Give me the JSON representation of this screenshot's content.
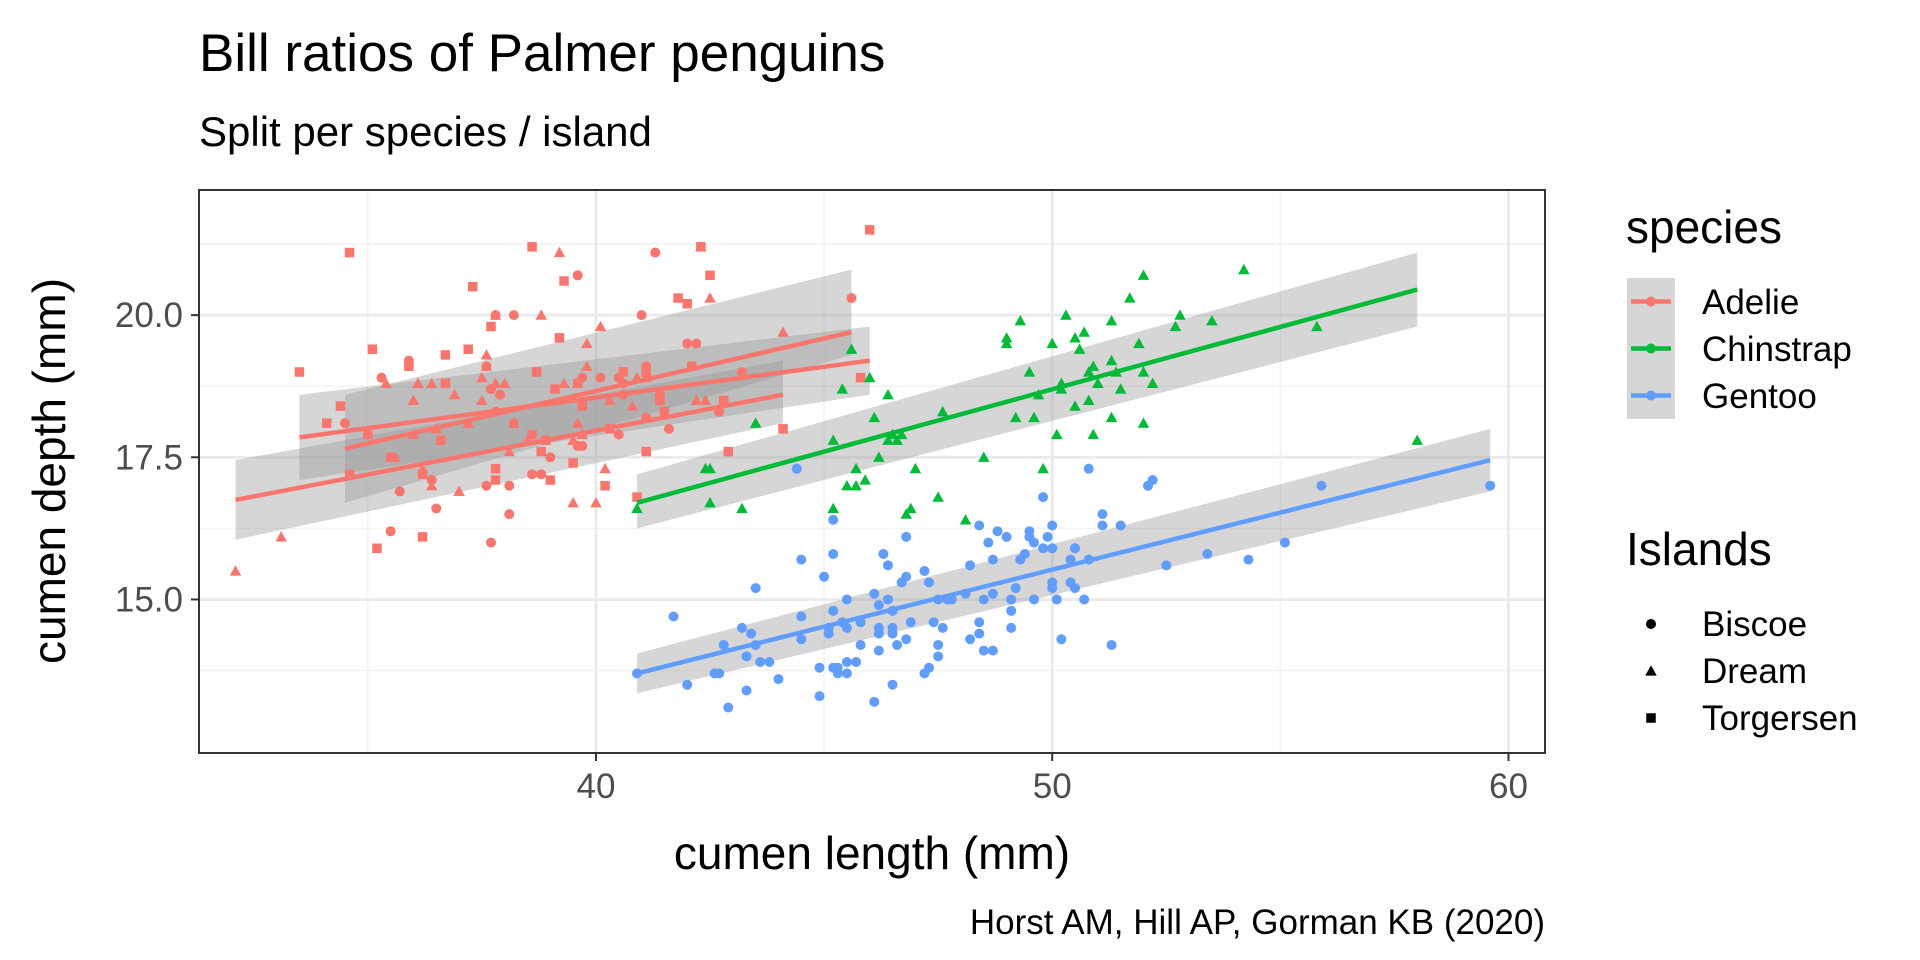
{
  "chart_data": {
    "type": "scatter",
    "title": "Bill ratios of Palmer penguins",
    "subtitle": "Split per species / island",
    "xlabel": "cumen length (mm)",
    "ylabel": "cumen depth (mm)",
    "caption": "Horst AM, Hill AP, Gorman KB (2020)",
    "xlim": [
      31.3,
      60.8
    ],
    "ylim": [
      12.3,
      22.2
    ],
    "x_ticks": [
      {
        "value": 40,
        "label": "40"
      },
      {
        "value": 50,
        "label": "50"
      },
      {
        "value": 60,
        "label": "60"
      }
    ],
    "y_ticks": [
      {
        "value": 15,
        "label": "15.0"
      },
      {
        "value": 17.5,
        "label": "17.5"
      },
      {
        "value": 20,
        "label": "20.0"
      }
    ],
    "grid": true,
    "legend_color": {
      "title": "species",
      "position": "right",
      "entries": [
        "Adelie",
        "Chinstrap",
        "Gentoo"
      ]
    },
    "legend_shape": {
      "title": "Islands",
      "position": "right",
      "entries": [
        {
          "label": "Biscoe",
          "shape": "circle"
        },
        {
          "label": "Dream",
          "shape": "triangle"
        },
        {
          "label": "Torgersen",
          "shape": "square"
        }
      ]
    },
    "colors": {
      "Adelie": "#F8766D",
      "Chinstrap": "#00BA38",
      "Gentoo": "#619CFF"
    },
    "series": [
      {
        "name": "Adelie",
        "points": [
          {
            "island": "Torgersen",
            "x": [
              39.1,
              39.5,
              40.3,
              36.7,
              39.3,
              38.9,
              39.2,
              34.1,
              42.0,
              37.8,
              37.8,
              41.1,
              38.6,
              34.6,
              36.6,
              38.7,
              42.5,
              34.4,
              46.0,
              35.9,
              41.8,
              33.5,
              39.7,
              39.6,
              45.8,
              35.5,
              42.8,
              40.9,
              37.2,
              36.2,
              42.1,
              34.6,
              42.9,
              36.7,
              35.1,
              37.3,
              41.1,
              36.2,
              37.7,
              40.2,
              41.4,
              35.2,
              40.6,
              38.8,
              41.5,
              39.0,
              44.1,
              38.6,
              42.3
            ],
            "y": [
              18.7,
              17.4,
              18.0,
              19.3,
              20.6,
              17.8,
              19.6,
              18.1,
              20.2,
              17.1,
              17.3,
              17.6,
              21.2,
              21.1,
              17.8,
              19.0,
              20.7,
              18.4,
              21.5,
              19.1,
              20.3,
              19.0,
              18.4,
              18.8,
              18.9,
              17.5,
              18.5,
              16.8,
              19.4,
              16.1,
              19.1,
              17.2,
              17.6,
              18.8,
              19.4,
              20.5,
              19.0,
              17.2,
              19.8,
              17.0,
              18.5,
              15.9,
              19.0,
              17.6,
              18.3,
              17.1,
              18.0,
              17.9,
              21.2
            ]
          },
          {
            "island": "Biscoe",
            "x": [
              37.8,
              37.7,
              35.9,
              38.2,
              38.8,
              35.3,
              40.6,
              40.5,
              37.9,
              40.5,
              39.6,
              40.1,
              35.0,
              42.0,
              34.5,
              41.4,
              39.0,
              40.6,
              36.5,
              37.6,
              35.7,
              41.3,
              37.6,
              41.1,
              36.4,
              41.6,
              35.5,
              41.1,
              35.0,
              41.0,
              37.7,
              37.8,
              37.9,
              39.7,
              38.6,
              38.2,
              38.1,
              43.2,
              38.1,
              45.6,
              39.7,
              42.2,
              39.6,
              42.7
            ],
            "y": [
              18.3,
              18.7,
              19.2,
              18.1,
              17.2,
              18.9,
              18.6,
              17.9,
              18.6,
              18.9,
              17.7,
              18.9,
              17.9,
              19.5,
              18.1,
              18.6,
              17.5,
              18.8,
              16.6,
              19.1,
              16.9,
              21.1,
              17.0,
              18.2,
              17.1,
              18.0,
              16.2,
              19.1,
              17.9,
              20.0,
              16.0,
              20.0,
              18.6,
              18.9,
              17.2,
              20.0,
              17.0,
              19.0,
              16.5,
              20.3,
              17.7,
              19.5,
              20.7,
              18.3
            ]
          },
          {
            "island": "Dream",
            "x": [
              39.5,
              37.2,
              39.5,
              40.9,
              36.4,
              39.2,
              38.8,
              42.2,
              37.6,
              39.8,
              36.5,
              40.8,
              36.0,
              44.1,
              37.0,
              39.6,
              41.1,
              37.5,
              36.0,
              42.3,
              39.6,
              40.1,
              35.0,
              42.5,
              36.9,
              40.3,
              38.2,
              39.5,
              35.4,
              41.1,
              33.1,
              40.2,
              37.8,
              39.8,
              38.0,
              37.2,
              36.2,
              37.5,
              38.1,
              39.7,
              36.0,
              32.1,
              40.0,
              36.4,
              38.5,
              35.6,
              37.8,
              36.1,
              42.2,
              37.0,
              39.3,
              37.6,
              42.4
            ],
            "y": [
              16.7,
              18.1,
              17.8,
              18.9,
              17.0,
              21.1,
              20.0,
              18.5,
              19.3,
              19.1,
              18.0,
              18.4,
              18.5,
              19.7,
              16.9,
              18.8,
              19.0,
              18.9,
              17.9,
              21.2,
              18.1,
              19.8,
              17.9,
              20.3,
              18.6,
              18.5,
              18.1,
              17.8,
              18.8,
              18.9,
              16.1,
              17.3,
              18.8,
              19.5,
              18.8,
              18.1,
              17.3,
              18.5,
              17.6,
              17.9,
              18.5,
              15.5,
              16.7,
              18.8,
              17.8,
              17.5,
              20.0,
              18.8,
              18.5,
              16.9,
              18.8,
              19.1,
              18.5
            ]
          }
        ],
        "fits": [
          {
            "island": "Torgersen",
            "x": [
              33.5,
              46.0
            ],
            "y": [
              17.85,
              19.2
            ],
            "ci_low": [
              17.1,
              18.6
            ],
            "ci_high": [
              18.6,
              19.8
            ]
          },
          {
            "island": "Biscoe",
            "x": [
              34.5,
              45.6
            ],
            "y": [
              17.65,
              19.7
            ],
            "ci_low": [
              16.7,
              19.3
            ],
            "ci_high": [
              18.6,
              20.8
            ]
          },
          {
            "island": "Dream",
            "x": [
              32.1,
              44.1
            ],
            "y": [
              16.75,
              18.6
            ],
            "ci_low": [
              16.05,
              18.1
            ],
            "ci_high": [
              17.45,
              19.2
            ]
          }
        ]
      },
      {
        "name": "Chinstrap",
        "points": [
          {
            "island": "Dream",
            "x": [
              46.5,
              50.0,
              51.3,
              45.4,
              52.7,
              45.2,
              46.1,
              51.3,
              46.0,
              51.3,
              46.6,
              51.7,
              47.0,
              52.0,
              45.9,
              50.5,
              50.3,
              58.0,
              46.4,
              49.2,
              42.4,
              48.5,
              43.2,
              50.6,
              46.7,
              52.0,
              50.5,
              49.5,
              46.4,
              52.8,
              40.9,
              54.2,
              42.5,
              51.0,
              49.7,
              47.5,
              47.6,
              52.0,
              46.9,
              53.5,
              49.0,
              46.2,
              50.9,
              45.5,
              50.9,
              50.8,
              50.1,
              49.0,
              51.5,
              49.8,
              48.1,
              51.4,
              45.7,
              50.7,
              42.5,
              52.2,
              45.2,
              49.3,
              50.2,
              45.6,
              51.9,
              46.8,
              45.7,
              55.8,
              43.5,
              49.6,
              50.8,
              50.2
            ],
            "y": [
              17.9,
              19.5,
              19.2,
              18.7,
              19.8,
              17.8,
              18.2,
              18.2,
              18.9,
              19.9,
              17.8,
              20.3,
              17.3,
              18.1,
              17.1,
              19.6,
              20.0,
              17.8,
              18.6,
              18.2,
              17.3,
              17.5,
              16.6,
              19.4,
              17.9,
              19.0,
              18.4,
              19.0,
              17.8,
              20.0,
              16.6,
              20.8,
              16.7,
              18.8,
              18.6,
              16.8,
              18.3,
              20.7,
              16.6,
              19.9,
              19.5,
              17.5,
              19.1,
              17.0,
              17.9,
              18.5,
              17.9,
              19.6,
              18.7,
              17.3,
              16.4,
              19.0,
              17.3,
              19.7,
              17.3,
              18.8,
              16.6,
              19.9,
              18.8,
              19.4,
              19.5,
              16.5,
              17.0,
              19.8,
              18.1,
              18.2,
              19.0,
              18.7
            ]
          }
        ],
        "fits": [
          {
            "island": "Dream",
            "x": [
              40.9,
              58.0
            ],
            "y": [
              16.7,
              20.45
            ],
            "ci_low": [
              16.25,
              19.8
            ],
            "ci_high": [
              17.2,
              21.1
            ]
          }
        ]
      },
      {
        "name": "Gentoo",
        "points": [
          {
            "island": "Biscoe",
            "x": [
              46.1,
              50.0,
              48.7,
              50.0,
              47.6,
              46.5,
              45.4,
              46.7,
              43.3,
              46.8,
              40.9,
              49.0,
              45.5,
              48.4,
              45.8,
              49.3,
              42.0,
              49.2,
              46.2,
              48.7,
              50.2,
              45.1,
              46.5,
              46.3,
              42.9,
              46.1,
              44.5,
              47.8,
              48.2,
              50.0,
              47.3,
              42.8,
              45.1,
              59.6,
              49.1,
              48.4,
              42.6,
              44.4,
              44.0,
              48.7,
              42.7,
              49.6,
              45.3,
              49.6,
              50.5,
              43.6,
              45.5,
              50.5,
              44.9,
              45.2,
              46.6,
              48.5,
              45.1,
              50.1,
              46.5,
              45.0,
              43.8,
              45.5,
              43.2,
              50.4,
              45.3,
              46.2,
              45.7,
              54.3,
              45.8,
              49.8,
              46.2,
              49.5,
              43.5,
              50.7,
              47.7,
              46.4,
              48.2,
              46.5,
              46.4,
              48.6,
              47.5,
              51.1,
              45.2,
              45.2,
              49.1,
              52.5,
              47.4,
              50.0,
              44.9,
              50.8,
              43.4,
              51.3,
              47.5,
              52.1,
              47.5,
              52.2,
              45.5,
              49.5,
              44.5,
              50.8,
              49.4,
              46.9,
              48.4,
              51.1,
              48.5,
              55.9,
              47.2,
              49.1,
              47.3,
              46.8,
              41.7,
              53.4,
              43.3,
              48.1,
              50.5,
              49.8,
              43.5,
              51.5,
              46.2,
              55.1,
              44.5,
              48.8,
              47.2,
              46.8,
              50.4,
              45.2,
              49.9
            ],
            "y": [
              13.2,
              16.3,
              14.1,
              15.2,
              14.5,
              13.5,
              14.6,
              15.3,
              13.4,
              15.4,
              13.7,
              16.1,
              13.7,
              14.6,
              14.6,
              15.7,
              13.5,
              15.2,
              14.5,
              15.1,
              14.3,
              14.5,
              14.5,
              15.8,
              13.1,
              15.1,
              14.3,
              15.0,
              14.3,
              15.3,
              15.3,
              14.2,
              14.5,
              17.0,
              14.8,
              16.3,
              13.7,
              17.3,
              13.6,
              15.7,
              13.7,
              16.0,
              13.7,
              15.0,
              15.9,
              13.9,
              13.9,
              15.9,
              13.3,
              15.8,
              14.2,
              14.1,
              14.4,
              15.0,
              14.4,
              15.4,
              13.9,
              15.0,
              14.5,
              15.3,
              13.8,
              14.9,
              13.9,
              15.7,
              14.2,
              16.8,
              14.4,
              16.2,
              14.2,
              15.0,
              15.0,
              15.6,
              15.6,
              14.8,
              15.0,
              16.0,
              14.2,
              16.3,
              13.8,
              16.4,
              14.5,
              15.6,
              14.6,
              15.9,
              13.8,
              17.3,
              14.4,
              14.2,
              14.0,
              17.0,
              15.0,
              17.1,
              14.5,
              16.1,
              14.7,
              15.7,
              15.8,
              14.6,
              14.4,
              16.5,
              15.0,
              17.0,
              15.5,
              15.0,
              13.8,
              16.1,
              14.7,
              15.8,
              14.0,
              15.1,
              15.2,
              15.9,
              15.2,
              16.3,
              14.1,
              16.0,
              15.7,
              16.2,
              13.7,
              14.3,
              15.7,
              14.8,
              16.1
            ]
          }
        ],
        "fits": [
          {
            "island": "Biscoe",
            "x": [
              40.9,
              59.6
            ],
            "y": [
              13.7,
              17.45
            ],
            "ci_low": [
              13.35,
              16.9
            ],
            "ci_high": [
              14.05,
              18.0
            ]
          }
        ]
      }
    ]
  }
}
